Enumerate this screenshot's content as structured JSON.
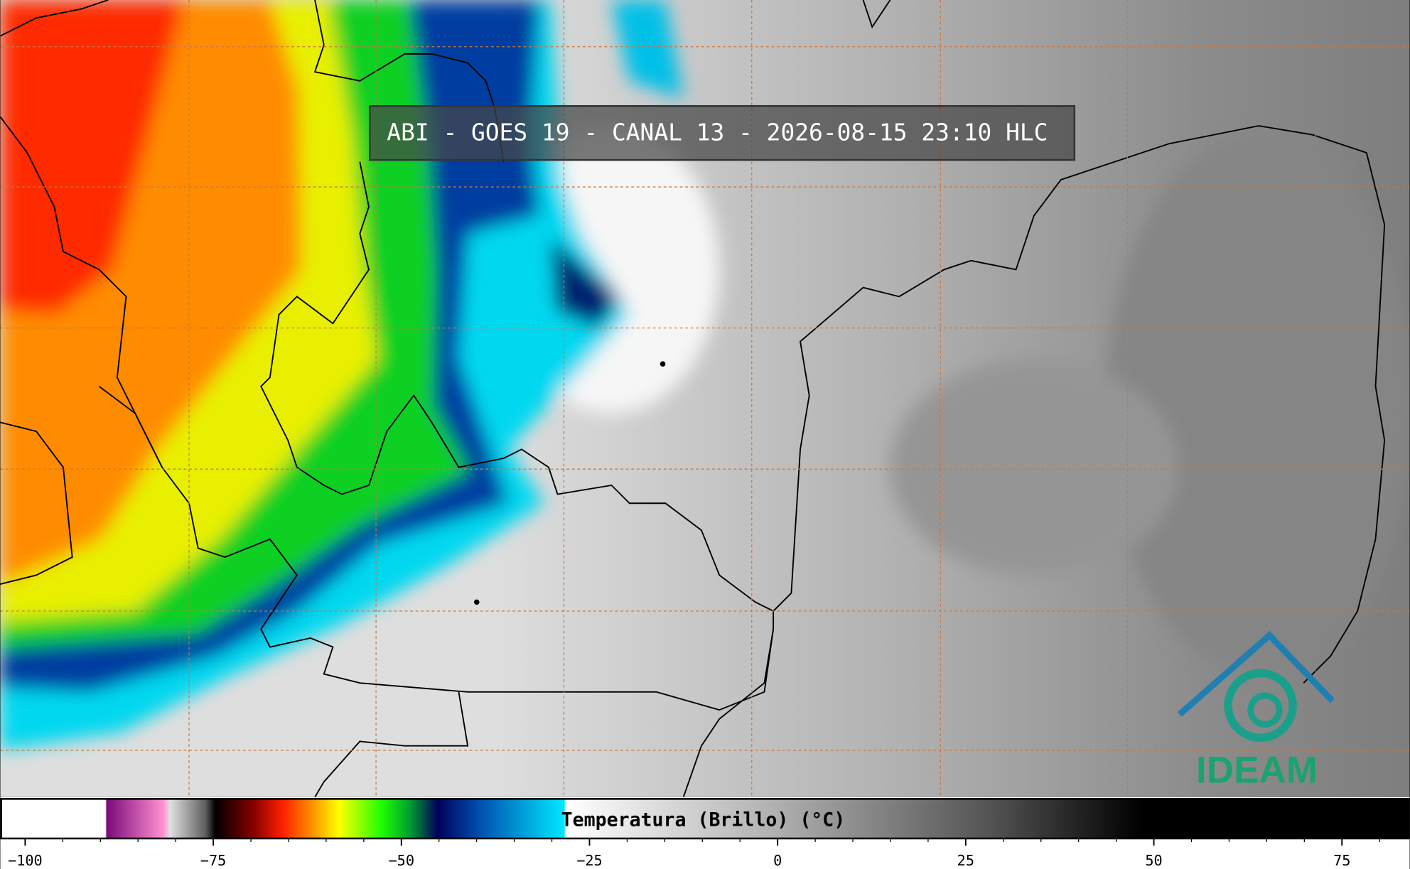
{
  "header": {
    "title": "ABI - GOES 19 - CANAL 13 - 2026-08-15 23:10 HLC"
  },
  "colorbar": {
    "label": "Temperatura (Brillo) (°C)",
    "range": [
      -103.3,
      84
    ],
    "ticks": [
      {
        "value": -100,
        "label": "−100"
      },
      {
        "value": -75,
        "label": "−75"
      },
      {
        "value": -50,
        "label": "−50"
      },
      {
        "value": -25,
        "label": "−25"
      },
      0,
      25,
      50,
      75
    ],
    "minor_ticks": [
      -95,
      -90,
      -85,
      -80,
      -70,
      -65,
      -60,
      -55,
      -45,
      -40,
      -35,
      -30,
      -20,
      -15,
      -10,
      -5,
      5,
      10,
      15,
      20,
      30,
      35,
      40,
      45,
      55,
      60,
      65,
      70,
      80
    ]
  },
  "logo": {
    "text": "IDEAM"
  }
}
